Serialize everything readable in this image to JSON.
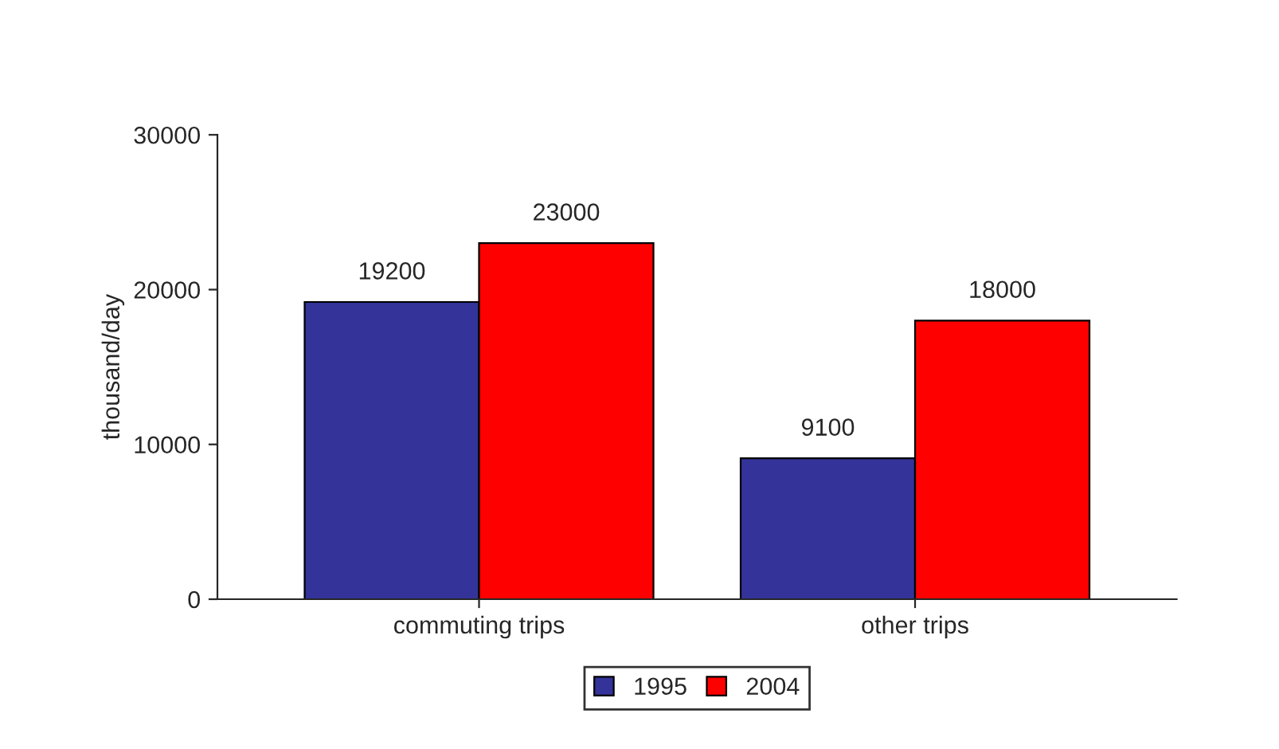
{
  "chart_data": {
    "type": "bar",
    "ylabel": "thousand/day",
    "categories": [
      "commuting trips",
      "other trips"
    ],
    "series": [
      {
        "name": "1995",
        "color": "#333399",
        "values": [
          19200,
          9100
        ]
      },
      {
        "name": "2004",
        "color": "#ff0000",
        "values": [
          23000,
          18000
        ]
      }
    ],
    "ylim": [
      0,
      30000
    ],
    "yticks": [
      0,
      10000,
      20000,
      30000
    ],
    "data_labels": true,
    "grid": false,
    "legend": "bottom"
  }
}
